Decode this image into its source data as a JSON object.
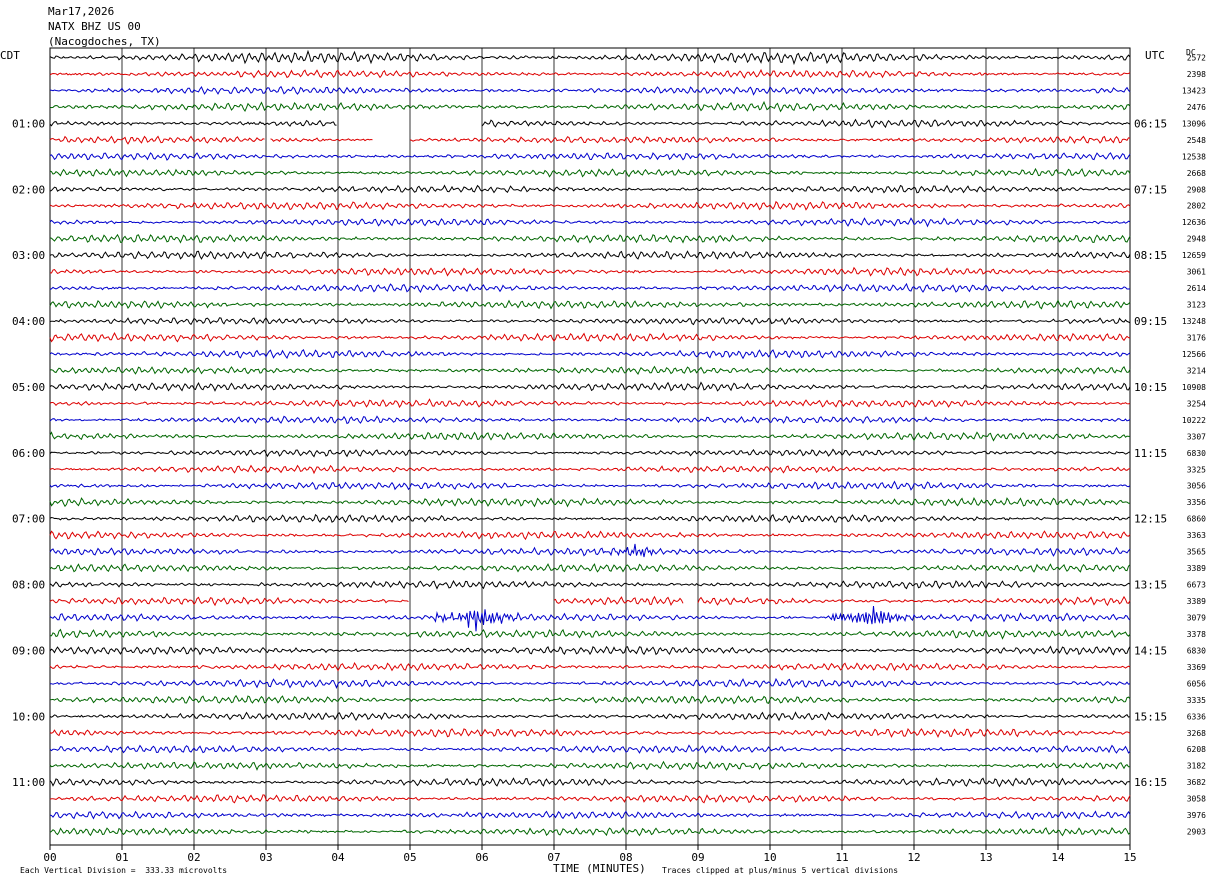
{
  "header": {
    "date": "Mar17,2026",
    "station": "NATX BHZ US 00",
    "location": "(Nacogdoches, TX)"
  },
  "left_timezone": "CDT",
  "right_timezone": "UTC",
  "dc_label": "DC",
  "footer": {
    "scale_note": "Each Vertical Division =  333.33 microvolts",
    "x_axis_title": "TIME (MINUTES)",
    "clip_note": "Traces clipped at plus/minus 5 vertical divisions"
  },
  "colors": {
    "trace_cycle": [
      "#000000",
      "#dd0000",
      "#0000cc",
      "#006600"
    ],
    "grid": "#000000",
    "background": "#ffffff"
  },
  "chart_data": {
    "type": "line",
    "title": "NATX BHZ US 00",
    "xlabel": "TIME (MINUTES)",
    "x_ticks": [
      "00",
      "01",
      "02",
      "03",
      "04",
      "05",
      "06",
      "07",
      "08",
      "09",
      "10",
      "11",
      "12",
      "13",
      "14",
      "15"
    ],
    "xlim": [
      0,
      15
    ],
    "trace_count": 48,
    "minutes_per_trace": 15,
    "left_hour_labels": [
      "01:00",
      "02:00",
      "03:00",
      "04:00",
      "05:00",
      "06:00",
      "07:00",
      "08:00",
      "09:00",
      "10:00",
      "11:00"
    ],
    "right_hour_labels": [
      "06:15",
      "07:15",
      "08:15",
      "09:15",
      "10:15",
      "11:15",
      "12:15",
      "13:15",
      "14:15",
      "15:15",
      "16:15"
    ],
    "dc_offsets": [
      "2572",
      "2398",
      "13423",
      "2476",
      "13096",
      "2548",
      "12538",
      "2668",
      "2908",
      "2802",
      "12636",
      "2948",
      "12659",
      "3061",
      "2614",
      "3123",
      "13248",
      "3176",
      "12566",
      "3214",
      "10908",
      "3254",
      "10222",
      "3307",
      "6830",
      "3325",
      "3056",
      "3356",
      "6860",
      "3363",
      "3565",
      "3389",
      "6673",
      "3389",
      "3079",
      "3378",
      "6830",
      "3369",
      "6056",
      "3335",
      "6336",
      "3268",
      "6208",
      "3182",
      "3682",
      "3058",
      "3976",
      "2903"
    ],
    "events": [
      {
        "trace_index": 34,
        "minute": 5.9,
        "amplitude": "large"
      },
      {
        "trace_index": 34,
        "minute": 11.4,
        "amplitude": "large"
      },
      {
        "trace_index": 30,
        "minute": 8.1,
        "amplitude": "moderate"
      }
    ],
    "gaps": [
      {
        "trace_index": 4,
        "start_minute": 4.0,
        "end_minute": 5.0
      },
      {
        "trace_index": 4,
        "start_minute": 5.0,
        "end_minute": 6.0
      },
      {
        "trace_index": 5,
        "start_minute": 3.0,
        "end_minute": 3.05
      },
      {
        "trace_index": 5,
        "start_minute": 4.5,
        "end_minute": 5.0
      },
      {
        "trace_index": 33,
        "start_minute": 5.0,
        "end_minute": 7.0
      },
      {
        "trace_index": 33,
        "start_minute": 8.8,
        "end_minute": 9.0
      }
    ]
  }
}
